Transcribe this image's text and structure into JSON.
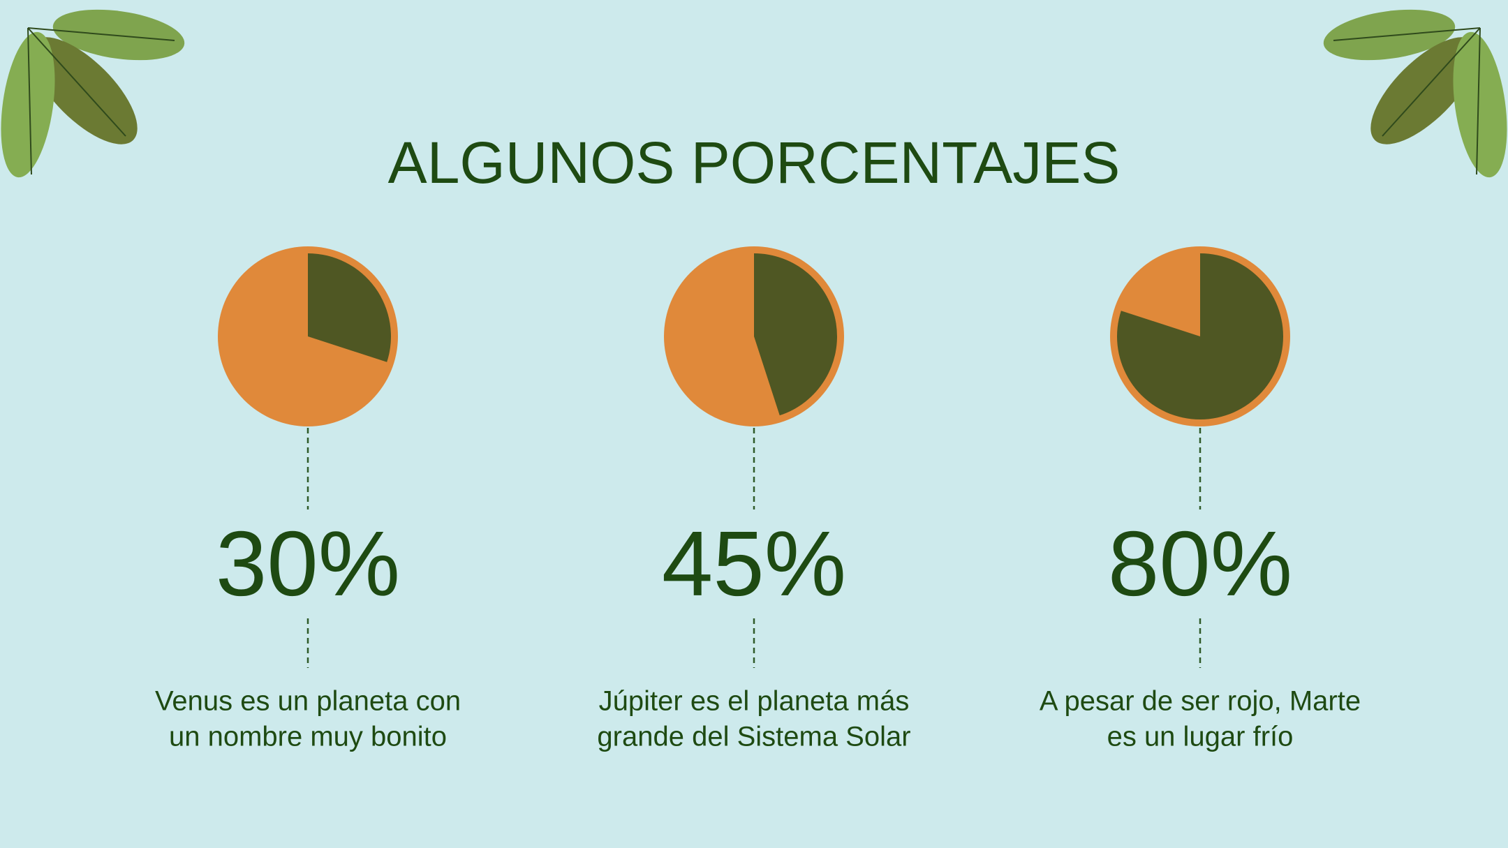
{
  "title": "ALGUNOS PORCENTAJES",
  "chart_data": [
    {
      "type": "pie",
      "values": [
        30
      ],
      "value_labels": [
        "30%"
      ],
      "color": "#4f5723",
      "background_color": "#e0893a",
      "description": [
        "Venus es un planeta con",
        "un nombre muy bonito"
      ]
    },
    {
      "type": "pie",
      "values": [
        45
      ],
      "value_labels": [
        "45%"
      ],
      "color": "#4f5723",
      "background_color": "#e0893a",
      "description": [
        "Júpiter es el planeta más",
        "grande del Sistema Solar"
      ]
    },
    {
      "type": "pie",
      "values": [
        80
      ],
      "value_labels": [
        "80%"
      ],
      "color": "#4f5723",
      "background_color": "#e0893a",
      "description": [
        "A pesar de ser rojo, Marte",
        "es un lugar frío"
      ]
    }
  ]
}
